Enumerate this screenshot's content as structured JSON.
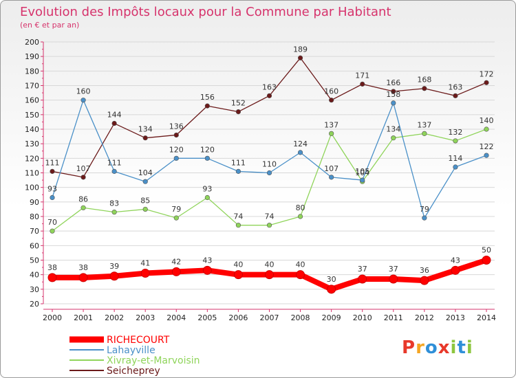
{
  "chart_data": {
    "type": "line",
    "title": "Evolution des Impôts locaux pour la Commune par Habitant",
    "subtitle": "(en € et par an)",
    "xlabel": "",
    "ylabel": "",
    "ylim": [
      20,
      200
    ],
    "yticks": [
      "20",
      "30",
      "40",
      "50",
      "60",
      "70",
      "80",
      "90",
      "100",
      "110",
      "120",
      "130",
      "140",
      "150",
      "160",
      "170",
      "180",
      "190",
      "200"
    ],
    "categories": [
      "2000",
      "2001",
      "2002",
      "2003",
      "2004",
      "2005",
      "2006",
      "2007",
      "2008",
      "2009",
      "2010",
      "2011",
      "2012",
      "2013",
      "2014"
    ],
    "series": [
      {
        "name": "RICHECOURT",
        "color": "#ff0000",
        "values": [
          38,
          38,
          39,
          41,
          42,
          43,
          40,
          40,
          40,
          30,
          37,
          37,
          36,
          43,
          50
        ]
      },
      {
        "name": "Lahayville",
        "color": "#4a90c8",
        "values": [
          93,
          160,
          111,
          104,
          120,
          120,
          111,
          110,
          124,
          107,
          105,
          158,
          79,
          114,
          122
        ]
      },
      {
        "name": "Xivray-et-Marvoisin",
        "color": "#8fd45a",
        "values": [
          70,
          86,
          83,
          85,
          79,
          93,
          74,
          74,
          80,
          137,
          104,
          134,
          137,
          132,
          140
        ]
      },
      {
        "name": "Seicheprey",
        "color": "#6b1a1a",
        "values": [
          111,
          107,
          144,
          134,
          136,
          156,
          152,
          163,
          189,
          160,
          171,
          166,
          168,
          163,
          172
        ]
      }
    ],
    "legend_position": "bottom-left"
  },
  "logo": {
    "letters": [
      "P",
      "r",
      "o",
      "x",
      "i",
      "t",
      "i"
    ],
    "colors": [
      "#e8392b",
      "#f4a623",
      "#2f8fd8",
      "#e8392b",
      "#8dc63f",
      "#2f8fd8",
      "#8dc63f"
    ]
  }
}
